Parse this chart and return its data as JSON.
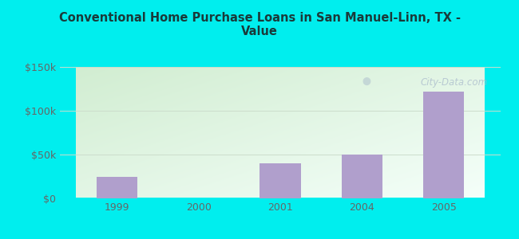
{
  "title": "Conventional Home Purchase Loans in San Manuel-Linn, TX -\nValue",
  "categories": [
    "1999",
    "2000",
    "2001",
    "2004",
    "2005"
  ],
  "values": [
    25000,
    0,
    40000,
    50000,
    122000
  ],
  "bar_color": "#b09fcc",
  "ylim": [
    0,
    150000
  ],
  "yticks": [
    0,
    50000,
    100000,
    150000
  ],
  "ytick_labels": [
    "$0",
    "$50k",
    "$100k",
    "$150k"
  ],
  "outer_bg": "#00eeee",
  "title_color": "#1a3a3a",
  "tick_color": "#666666",
  "grid_color": "#ccddcc",
  "title_fontsize": 10.5,
  "bg_green": "#d4ecd4",
  "bg_white": "#f5fff5"
}
